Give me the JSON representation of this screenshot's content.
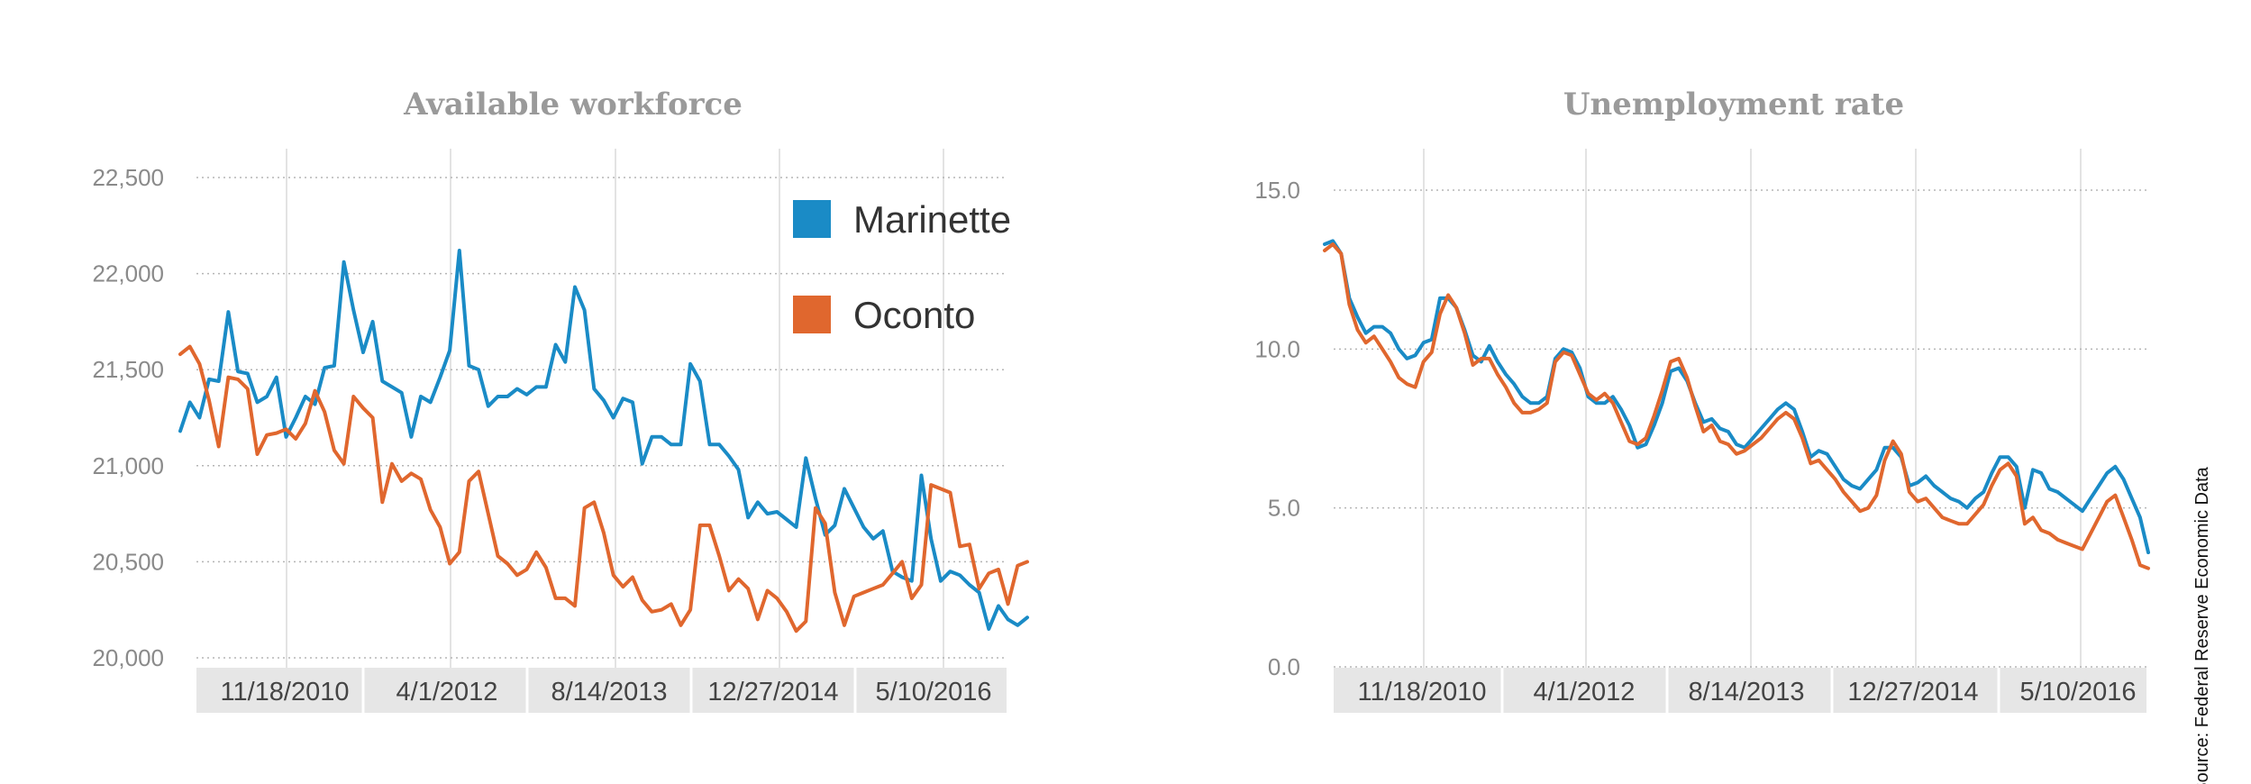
{
  "colors": {
    "marinette": "#1a8bc6",
    "oconto": "#e0672e",
    "band": "#e6e6e6",
    "grid": "#bbbbbb",
    "title": "#9a9a9a"
  },
  "source": "Source: Federal Reserve Economic Data",
  "legend": {
    "marinette": "Marinette",
    "oconto": "Oconto",
    "placement": "top-right"
  },
  "chart_data": [
    {
      "type": "line",
      "title": "Available workforce",
      "xlabel": "",
      "ylabel": "",
      "x_ticks": [
        "11/18/2010",
        "4/1/2012",
        "8/14/2013",
        "12/27/2014",
        "5/10/2016"
      ],
      "y_ticks": [
        "20,000",
        "20,500",
        "21,000",
        "21,500",
        "22,000",
        "22,500"
      ],
      "ylim": [
        20000,
        22500
      ],
      "grid": "horizontal dotted",
      "series": [
        {
          "name": "Marinette",
          "color": "#1a8bc6",
          "values": [
            21180,
            21330,
            21250,
            21450,
            21440,
            21800,
            21490,
            21480,
            21330,
            21360,
            21460,
            21150,
            21250,
            21360,
            21320,
            21510,
            21520,
            22060,
            21810,
            21590,
            21750,
            21440,
            21410,
            21380,
            21150,
            21360,
            21330,
            21460,
            21600,
            22120,
            21520,
            21500,
            21310,
            21360,
            21360,
            21400,
            21370,
            21410,
            21410,
            21630,
            21540,
            21930,
            21810,
            21400,
            21340,
            21250,
            21350,
            21330,
            21010,
            21150,
            21150,
            21110,
            21110,
            21530,
            21440,
            21110,
            21110,
            21050,
            20980,
            20730,
            20810,
            20750,
            20760,
            20720,
            20680,
            21040,
            20830,
            20640,
            20690,
            20880,
            20780,
            20680,
            20620,
            20660,
            20450,
            20420,
            20400,
            20950,
            20620,
            20400,
            20450,
            20430,
            20380,
            20340,
            20150,
            20270,
            20200,
            20170,
            20210
          ]
        },
        {
          "name": "Oconto",
          "color": "#e0672e",
          "values": [
            21580,
            21620,
            21530,
            21340,
            21100,
            21460,
            21450,
            21400,
            21060,
            21160,
            21170,
            21190,
            21140,
            21220,
            21390,
            21280,
            21080,
            21010,
            21360,
            21300,
            21250,
            20810,
            21010,
            20920,
            20960,
            20930,
            20770,
            20680,
            20490,
            20550,
            20920,
            20970,
            20750,
            20530,
            20490,
            20430,
            20460,
            20550,
            20470,
            20310,
            20310,
            20270,
            20780,
            20810,
            20650,
            20430,
            20370,
            20420,
            20300,
            20240,
            20250,
            20280,
            20170,
            20250,
            20690,
            20690,
            20530,
            20350,
            20410,
            20360,
            20200,
            20350,
            20310,
            20240,
            20140,
            20190,
            20780,
            20700,
            20340,
            20170,
            20320,
            20340,
            20360,
            20380,
            20440,
            20500,
            20310,
            20380,
            20900,
            20880,
            20860,
            20580,
            20590,
            20360,
            20440,
            20460,
            20280,
            20480,
            20500
          ]
        }
      ]
    },
    {
      "type": "line",
      "title": "Unemployment rate",
      "xlabel": "",
      "ylabel": "",
      "x_ticks": [
        "11/18/2010",
        "4/1/2012",
        "8/14/2013",
        "12/27/2014",
        "5/10/2016"
      ],
      "y_ticks": [
        "0.0",
        "5.0",
        "10.0",
        "15.0"
      ],
      "ylim": [
        0,
        15
      ],
      "grid": "horizontal dotted",
      "series": [
        {
          "name": "Marinette",
          "color": "#1a8bc6",
          "values": [
            13.3,
            13.4,
            13.0,
            11.6,
            11.0,
            10.5,
            10.7,
            10.7,
            10.5,
            10.0,
            9.7,
            9.8,
            10.2,
            10.3,
            11.6,
            11.6,
            11.3,
            10.6,
            9.8,
            9.6,
            10.1,
            9.6,
            9.2,
            8.9,
            8.5,
            8.3,
            8.3,
            8.5,
            9.7,
            10.0,
            9.9,
            9.4,
            8.5,
            8.3,
            8.3,
            8.5,
            8.1,
            7.6,
            6.9,
            7.0,
            7.6,
            8.3,
            9.3,
            9.4,
            9.0,
            8.3,
            7.7,
            7.8,
            7.5,
            7.4,
            7.0,
            6.9,
            7.2,
            7.5,
            7.8,
            8.1,
            8.3,
            8.1,
            7.4,
            6.6,
            6.8,
            6.7,
            6.3,
            5.9,
            5.7,
            5.6,
            5.9,
            6.2,
            6.9,
            6.9,
            6.6,
            5.7,
            5.8,
            6.0,
            5.7,
            5.5,
            5.3,
            5.2,
            5.0,
            5.3,
            5.5,
            6.1,
            6.6,
            6.6,
            6.3,
            5.0,
            6.2,
            6.1,
            5.6,
            5.5,
            5.3,
            5.1,
            4.9,
            5.3,
            5.7,
            6.1,
            6.3,
            5.9,
            5.3,
            4.7,
            3.6
          ]
        },
        {
          "name": "Oconto",
          "color": "#e0672e",
          "values": [
            13.1,
            13.3,
            13.0,
            11.4,
            10.6,
            10.2,
            10.4,
            10.0,
            9.6,
            9.1,
            8.9,
            8.8,
            9.6,
            9.9,
            11.1,
            11.7,
            11.3,
            10.5,
            9.5,
            9.7,
            9.7,
            9.2,
            8.8,
            8.3,
            8.0,
            8.0,
            8.1,
            8.3,
            9.6,
            9.9,
            9.8,
            9.2,
            8.6,
            8.4,
            8.6,
            8.3,
            7.7,
            7.1,
            7.0,
            7.2,
            7.9,
            8.7,
            9.6,
            9.7,
            9.1,
            8.2,
            7.4,
            7.6,
            7.1,
            7.0,
            6.7,
            6.8,
            7.0,
            7.2,
            7.5,
            7.8,
            8.0,
            7.8,
            7.2,
            6.4,
            6.5,
            6.2,
            5.9,
            5.5,
            5.2,
            4.9,
            5.0,
            5.4,
            6.5,
            7.1,
            6.7,
            5.5,
            5.2,
            5.3,
            5.0,
            4.7,
            4.6,
            4.5,
            4.5,
            4.8,
            5.1,
            5.7,
            6.2,
            6.4,
            6.0,
            4.5,
            4.7,
            4.3,
            4.2,
            4.0,
            3.9,
            3.8,
            3.7,
            4.2,
            4.7,
            5.2,
            5.4,
            4.7,
            4.0,
            3.2,
            3.1
          ]
        }
      ]
    }
  ]
}
